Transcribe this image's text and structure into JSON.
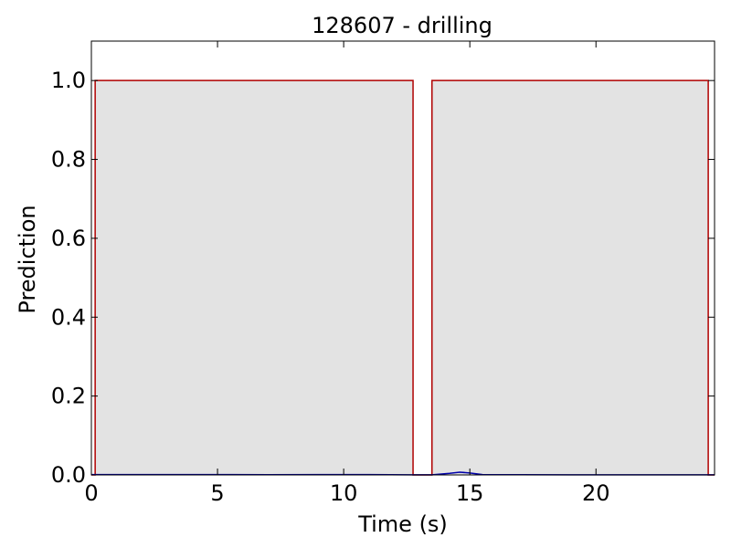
{
  "chart_data": {
    "type": "area",
    "title": "128607 - drilling",
    "xlabel": "Time (s)",
    "ylabel": "Prediction",
    "xlim": [
      0,
      24.7
    ],
    "ylim": [
      0,
      1.1
    ],
    "xticks": [
      0,
      5,
      10,
      15,
      20
    ],
    "yticks": [
      0.0,
      0.2,
      0.4,
      0.6,
      0.8,
      1.0
    ],
    "xtick_labels": [
      "0",
      "5",
      "10",
      "15",
      "20"
    ],
    "ytick_labels": [
      "0.0",
      "0.2",
      "0.4",
      "0.6",
      "0.8",
      "1.0"
    ],
    "grid": false,
    "series": [
      {
        "color": "#b00000",
        "fill": "#e3e3e3",
        "x": [
          0,
          0.15,
          0.15,
          12.75,
          12.75,
          13.5,
          13.5,
          24.45,
          24.45,
          24.7
        ],
        "y": [
          0,
          0,
          1,
          1,
          0,
          0,
          1,
          1,
          0,
          0
        ]
      },
      {
        "color": "#0000aa",
        "x": [
          0,
          1,
          3,
          5,
          7,
          9,
          11,
          12.7,
          13.5,
          14.2,
          14.6,
          15.0,
          15.5,
          17,
          19,
          21,
          23,
          24.7
        ],
        "y": [
          0.001,
          0.001,
          0.0008,
          0.001,
          0.0006,
          0.0008,
          0.0008,
          0.0004,
          0.0004,
          0.004,
          0.007,
          0.005,
          0.001,
          0.0006,
          0.0004,
          0.0004,
          0.0003,
          0.0003
        ]
      }
    ]
  }
}
